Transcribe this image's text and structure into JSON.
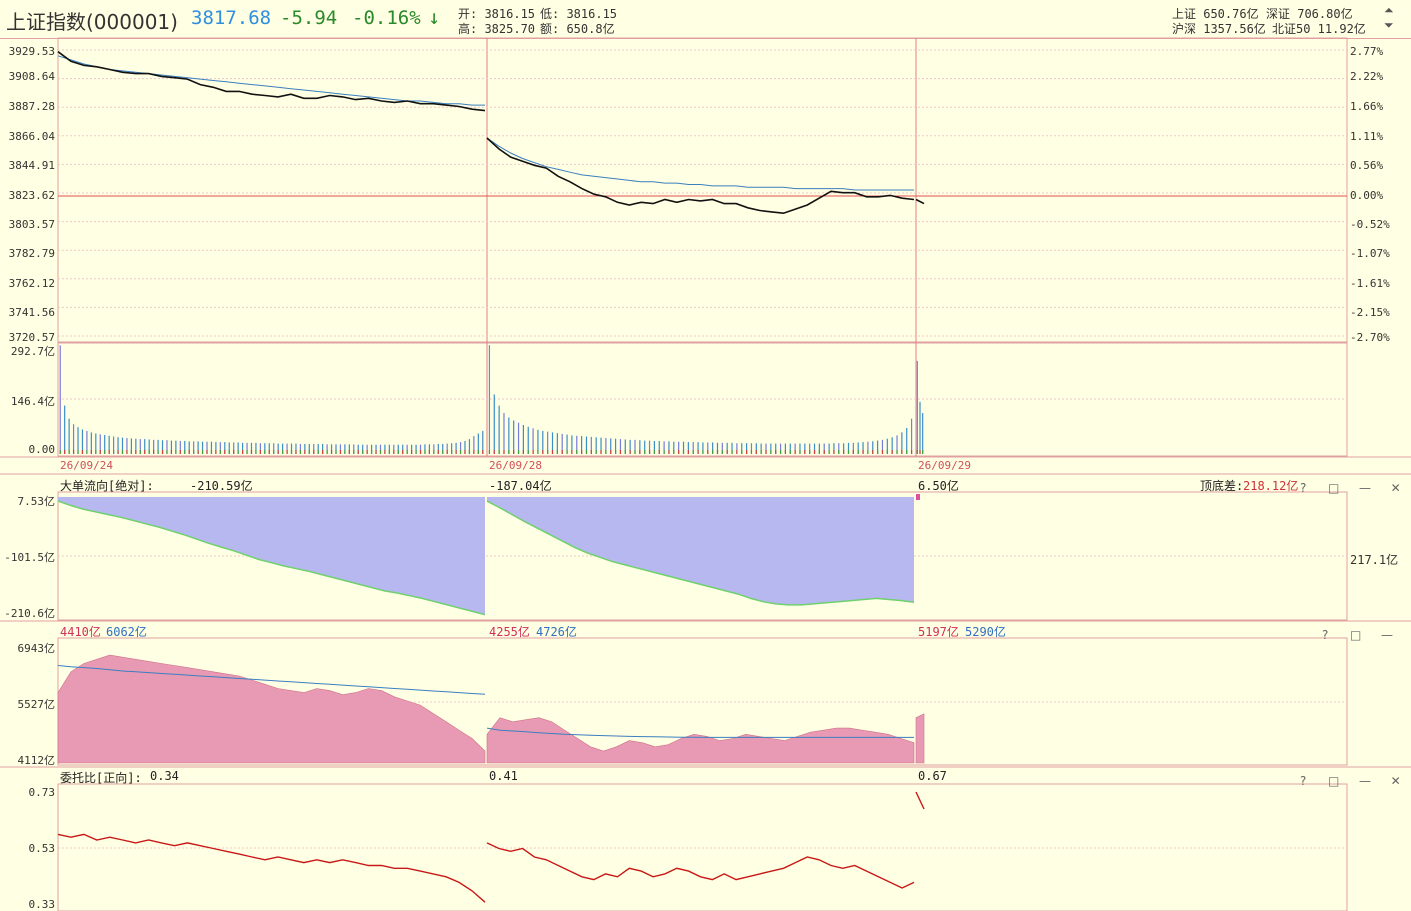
{
  "header": {
    "name": "上证指数(000001)",
    "price": "3817.68",
    "change": "-5.94",
    "pct": "-0.16%",
    "arrow": "↓",
    "open": "开: 3816.15",
    "low": "低: 3816.15",
    "high": "高: 3825.70",
    "amount": "额: 650.8亿",
    "sh": "上证 650.76亿",
    "sz": "深证 706.80亿",
    "hs": "沪深 1357.56亿",
    "bz50": "北证50 11.92亿"
  },
  "controls": {
    "help": "?",
    "max": "□",
    "min": "—",
    "close": "✕",
    "float": "⧉"
  },
  "chart_data": [
    {
      "type": "line",
      "name": "price",
      "ylim": [
        3720.57,
        3929.53
      ],
      "y_ticks": [
        "3929.53",
        "3908.64",
        "3887.28",
        "3866.04",
        "3844.91",
        "3823.62",
        "3803.57",
        "3782.79",
        "3762.12",
        "3741.56",
        "3720.57"
      ],
      "pct_ticks": [
        "2.77%",
        "2.22%",
        "1.66%",
        "1.11%",
        "0.56%",
        "0.00%",
        "-0.52%",
        "-1.07%",
        "-1.61%",
        "-2.15%",
        "-2.70%"
      ],
      "base": 3823.62,
      "days": [
        "26/09/24",
        "26/09/28",
        "26/09/29"
      ],
      "series": [
        {
          "role": "price",
          "day1": [
            3929,
            3922,
            3919,
            3918,
            3916,
            3914,
            3913,
            3913,
            3911,
            3910,
            3909,
            3905,
            3903,
            3900,
            3900,
            3898,
            3897,
            3896,
            3898,
            3895,
            3895,
            3897,
            3896,
            3894,
            3895,
            3893,
            3892,
            3893,
            3891,
            3891,
            3890,
            3889,
            3887,
            3886
          ],
          "day2": [
            3866,
            3858,
            3852,
            3849,
            3846,
            3844,
            3838,
            3834,
            3829,
            3825,
            3823,
            3819,
            3817,
            3819,
            3818,
            3821,
            3819,
            3821,
            3820,
            3821,
            3818,
            3818,
            3815,
            3813,
            3812,
            3811,
            3814,
            3817,
            3822,
            3827,
            3826,
            3826,
            3823,
            3823,
            3824,
            3822,
            3821
          ],
          "day3": [
            3821,
            3818
          ]
        },
        {
          "role": "avg",
          "day1": [
            3926,
            3923,
            3920,
            3918,
            3916,
            3915,
            3914,
            3913,
            3912,
            3911,
            3910,
            3909,
            3908,
            3907,
            3906,
            3905,
            3904,
            3903,
            3902,
            3901,
            3900,
            3899,
            3898,
            3897,
            3896,
            3895,
            3894,
            3893,
            3893,
            3892,
            3891,
            3891,
            3890,
            3890
          ],
          "day2": [
            3866,
            3860,
            3855,
            3851,
            3848,
            3845,
            3843,
            3841,
            3839,
            3838,
            3837,
            3836,
            3835,
            3834,
            3834,
            3833,
            3833,
            3832,
            3832,
            3831,
            3831,
            3831,
            3830,
            3830,
            3830,
            3830,
            3829,
            3829,
            3829,
            3829,
            3829,
            3828,
            3828,
            3828,
            3828,
            3828,
            3828
          ],
          "day3": []
        }
      ]
    },
    {
      "type": "bar",
      "name": "volume",
      "ylim": [
        0,
        292.7
      ],
      "y_ticks": [
        "292.7亿",
        "146.4亿",
        "0.00"
      ],
      "day1": [
        292,
        130,
        95,
        80,
        72,
        66,
        62,
        58,
        55,
        53,
        51,
        49,
        47,
        45,
        44,
        43,
        42,
        41,
        40,
        40,
        39,
        38,
        38,
        37,
        37,
        36,
        36,
        35,
        35,
        34,
        34,
        34,
        33,
        33,
        33,
        32,
        32,
        32,
        31,
        31,
        31,
        30,
        30,
        30,
        30,
        29,
        29,
        29,
        29,
        28,
        28,
        28,
        28,
        28,
        27,
        27,
        27,
        27,
        27,
        27,
        26,
        26,
        26,
        26,
        26,
        26,
        26,
        25,
        25,
        25,
        25,
        25,
        25,
        25,
        25,
        25,
        25,
        25,
        25,
        25,
        25,
        25,
        26,
        26,
        26,
        27,
        27,
        28,
        29,
        30,
        32,
        35,
        40,
        48,
        55,
        62
      ],
      "day2": [
        292,
        160,
        130,
        110,
        98,
        90,
        84,
        78,
        73,
        69,
        65,
        62,
        60,
        58,
        56,
        54,
        52,
        50,
        49,
        48,
        47,
        46,
        45,
        44,
        43,
        42,
        41,
        40,
        39,
        38,
        38,
        37,
        36,
        36,
        35,
        35,
        34,
        34,
        33,
        33,
        33,
        32,
        32,
        32,
        31,
        31,
        31,
        30,
        30,
        30,
        30,
        29,
        29,
        29,
        29,
        29,
        28,
        28,
        28,
        28,
        28,
        28,
        28,
        28,
        28,
        28,
        28,
        28,
        28,
        28,
        28,
        29,
        29,
        29,
        30,
        30,
        31,
        32,
        33,
        34,
        36,
        38,
        41,
        45,
        50,
        58,
        70,
        95
      ],
      "day3": [
        250,
        140,
        110
      ]
    },
    {
      "type": "area",
      "name": "大单流向[绝对]",
      "title": "大单流向[绝对]:",
      "ylim": [
        -210.6,
        7.53
      ],
      "y_ticks": [
        "7.53亿",
        "-101.5亿",
        "-210.6亿"
      ],
      "labels": [
        "-210.59亿",
        "-187.04亿",
        "6.50亿"
      ],
      "right_label": "217.1亿",
      "diff_label": "顶底差:",
      "diff_value": "218.12亿",
      "day1": [
        0,
        -8,
        -15,
        -20,
        -25,
        -30,
        -36,
        -42,
        -48,
        -55,
        -62,
        -70,
        -78,
        -85,
        -92,
        -100,
        -108,
        -114,
        -120,
        -125,
        -130,
        -136,
        -142,
        -148,
        -154,
        -160,
        -166,
        -170,
        -175,
        -180,
        -186,
        -192,
        -198,
        -204,
        -210
      ],
      "day2": [
        0,
        -12,
        -25,
        -38,
        -50,
        -62,
        -74,
        -86,
        -96,
        -104,
        -112,
        -118,
        -124,
        -130,
        -136,
        -142,
        -148,
        -154,
        -160,
        -166,
        -172,
        -180,
        -186,
        -190,
        -192,
        -192,
        -190,
        -188,
        -186,
        -184,
        -182,
        -180,
        -182,
        -184,
        -187
      ],
      "day3": [
        6.5
      ]
    },
    {
      "type": "area",
      "name": "turnover",
      "ylim": [
        4112,
        6943
      ],
      "y_ticks": [
        "6943亿",
        "5527亿",
        "4112亿"
      ],
      "labels": [
        [
          "4410亿",
          "6062亿"
        ],
        [
          "4255亿",
          "4726亿"
        ],
        [
          "5197亿",
          "5290亿"
        ]
      ],
      "day1": [
        5800,
        6300,
        6500,
        6600,
        6700,
        6650,
        6600,
        6550,
        6500,
        6450,
        6400,
        6350,
        6300,
        6250,
        6200,
        6100,
        6000,
        5900,
        5850,
        5800,
        5900,
        5850,
        5750,
        5800,
        5900,
        5850,
        5700,
        5600,
        5500,
        5300,
        5100,
        4900,
        4700,
        4400
      ],
      "day2": [
        4800,
        5200,
        5100,
        5150,
        5200,
        5100,
        4900,
        4700,
        4500,
        4400,
        4500,
        4650,
        4600,
        4500,
        4550,
        4700,
        4800,
        4750,
        4650,
        4700,
        4800,
        4750,
        4700,
        4650,
        4750,
        4850,
        4900,
        4950,
        4950,
        4900,
        4850,
        4800,
        4700,
        4600
      ],
      "day3": [
        5200,
        5290
      ],
      "avg1": [
        6450,
        6420,
        6400,
        6380,
        6350,
        6320,
        6300,
        6280,
        6260,
        6240,
        6220,
        6200,
        6180,
        6160,
        6140,
        6120,
        6100,
        6080,
        6060,
        6040,
        6020,
        6000,
        5980,
        5960,
        5940,
        5920,
        5900,
        5880,
        5860,
        5840,
        5820,
        5800,
        5780,
        5760
      ],
      "avg2": [
        4950,
        4900,
        4880,
        4860,
        4840,
        4820,
        4800,
        4790,
        4780,
        4770,
        4760,
        4750,
        4745,
        4740,
        4735,
        4730,
        4728,
        4726,
        4726,
        4726,
        4726,
        4726,
        4726,
        4726,
        4726,
        4726,
        4726,
        4726,
        4726,
        4726,
        4726,
        4726,
        4726,
        4726
      ]
    },
    {
      "type": "line",
      "name": "委托比[正向]",
      "title": "委托比[正向]:",
      "ylim": [
        0.33,
        0.73
      ],
      "y_ticks": [
        "0.73",
        "0.53",
        "0.33"
      ],
      "labels": [
        "0.34",
        "0.41",
        "0.67"
      ],
      "day1": [
        0.58,
        0.57,
        0.58,
        0.56,
        0.57,
        0.56,
        0.55,
        0.56,
        0.55,
        0.54,
        0.55,
        0.54,
        0.53,
        0.52,
        0.51,
        0.5,
        0.49,
        0.5,
        0.49,
        0.48,
        0.49,
        0.48,
        0.49,
        0.48,
        0.47,
        0.47,
        0.46,
        0.46,
        0.45,
        0.44,
        0.43,
        0.41,
        0.38,
        0.34
      ],
      "day2": [
        0.55,
        0.53,
        0.52,
        0.53,
        0.5,
        0.49,
        0.47,
        0.45,
        0.43,
        0.42,
        0.44,
        0.43,
        0.46,
        0.45,
        0.43,
        0.44,
        0.46,
        0.45,
        0.43,
        0.42,
        0.44,
        0.42,
        0.43,
        0.44,
        0.45,
        0.46,
        0.48,
        0.5,
        0.49,
        0.47,
        0.46,
        0.47,
        0.45,
        0.43,
        0.41,
        0.39,
        0.41
      ],
      "day3": [
        0.73,
        0.67
      ]
    }
  ]
}
